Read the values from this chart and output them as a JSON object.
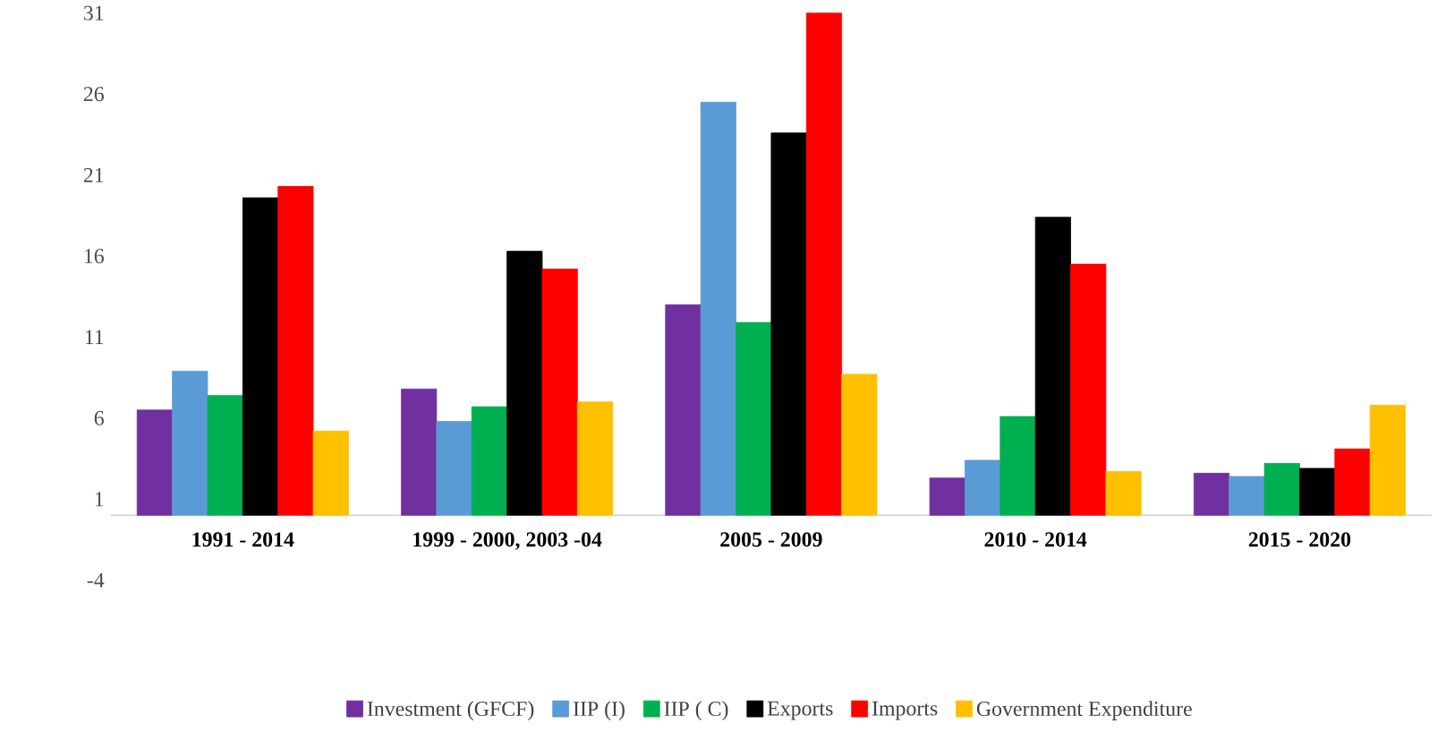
{
  "chart_data": {
    "type": "bar",
    "categories": [
      "1991 - 2014",
      "1999 - 2000, 2003 -04",
      "2005 - 2009",
      "2010 - 2014",
      "2015 - 2020"
    ],
    "series": [
      {
        "name": "Investment (GFCF)",
        "color": "#7030a0",
        "values": [
          6.5,
          7.8,
          13.0,
          2.3,
          2.6
        ]
      },
      {
        "name": "IIP (I)",
        "color": "#5b9bd5",
        "values": [
          8.9,
          5.8,
          25.5,
          3.4,
          2.4
        ]
      },
      {
        "name": "IIP ( C)",
        "color": "#00b050",
        "values": [
          7.4,
          6.7,
          11.9,
          6.1,
          3.2
        ]
      },
      {
        "name": "Exports",
        "color": "#000000",
        "values": [
          19.6,
          16.3,
          23.6,
          18.4,
          2.9
        ]
      },
      {
        "name": "Imports",
        "color": "#ff0000",
        "values": [
          20.3,
          15.2,
          31.0,
          15.5,
          4.1
        ]
      },
      {
        "name": "Government Expenditure",
        "color": "#ffc000",
        "values": [
          5.2,
          7.0,
          8.7,
          2.7,
          6.8
        ]
      }
    ],
    "ylim": [
      -4,
      31
    ],
    "yticks": [
      -4,
      1,
      6,
      11,
      16,
      21,
      26,
      31
    ],
    "grid": false,
    "legend": "bottom"
  }
}
